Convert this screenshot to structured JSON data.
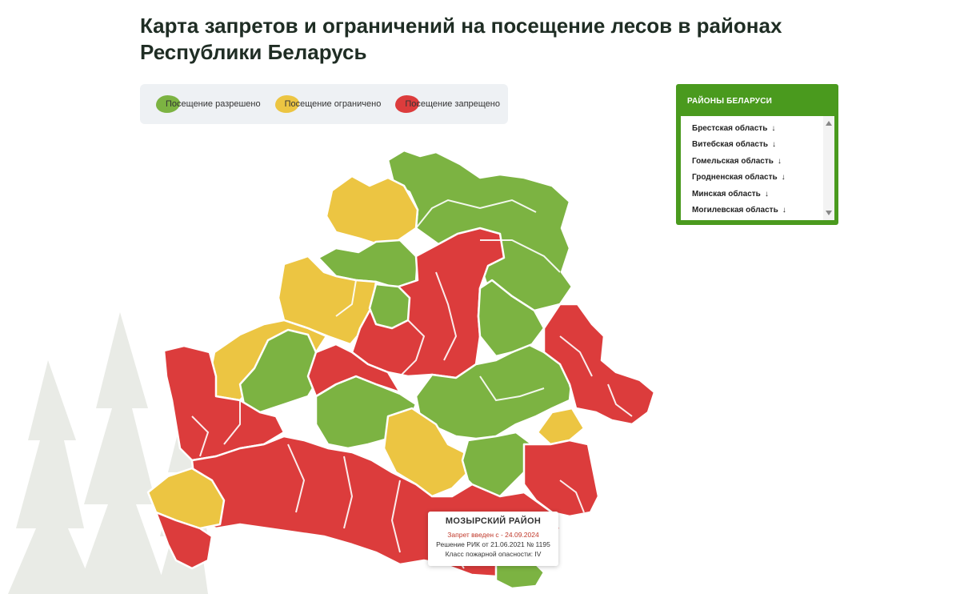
{
  "title": "Карта запретов и ограничений на посещение лесов в районах Республики Беларусь",
  "legend": [
    {
      "label": "Посещение разрешено",
      "color": "#7cb342"
    },
    {
      "label": "Посещение ограничено",
      "color": "#ecc542"
    },
    {
      "label": "Посещение запрещено",
      "color": "#dc3c3c"
    }
  ],
  "regions_panel": {
    "title": "РАЙОНЫ БЕЛАРУСИ",
    "items": [
      "Брестская область",
      "Витебская область",
      "Гомельская область",
      "Гродненская область",
      "Минская область",
      "Могилевская область"
    ],
    "arrow": "↓"
  },
  "tooltip": {
    "title": "МОЗЫРСКИЙ РАЙОН",
    "ban": "Запрет введен с - 24.09.2024",
    "decision": "Решение РИК от 21.06.2021 № 1195",
    "fire_class": "Класс пожарной опасности: IV"
  },
  "colors": {
    "allowed": "#7cb342",
    "limited": "#ecc542",
    "banned": "#dc3c3c",
    "panel": "#4a9a1e"
  }
}
